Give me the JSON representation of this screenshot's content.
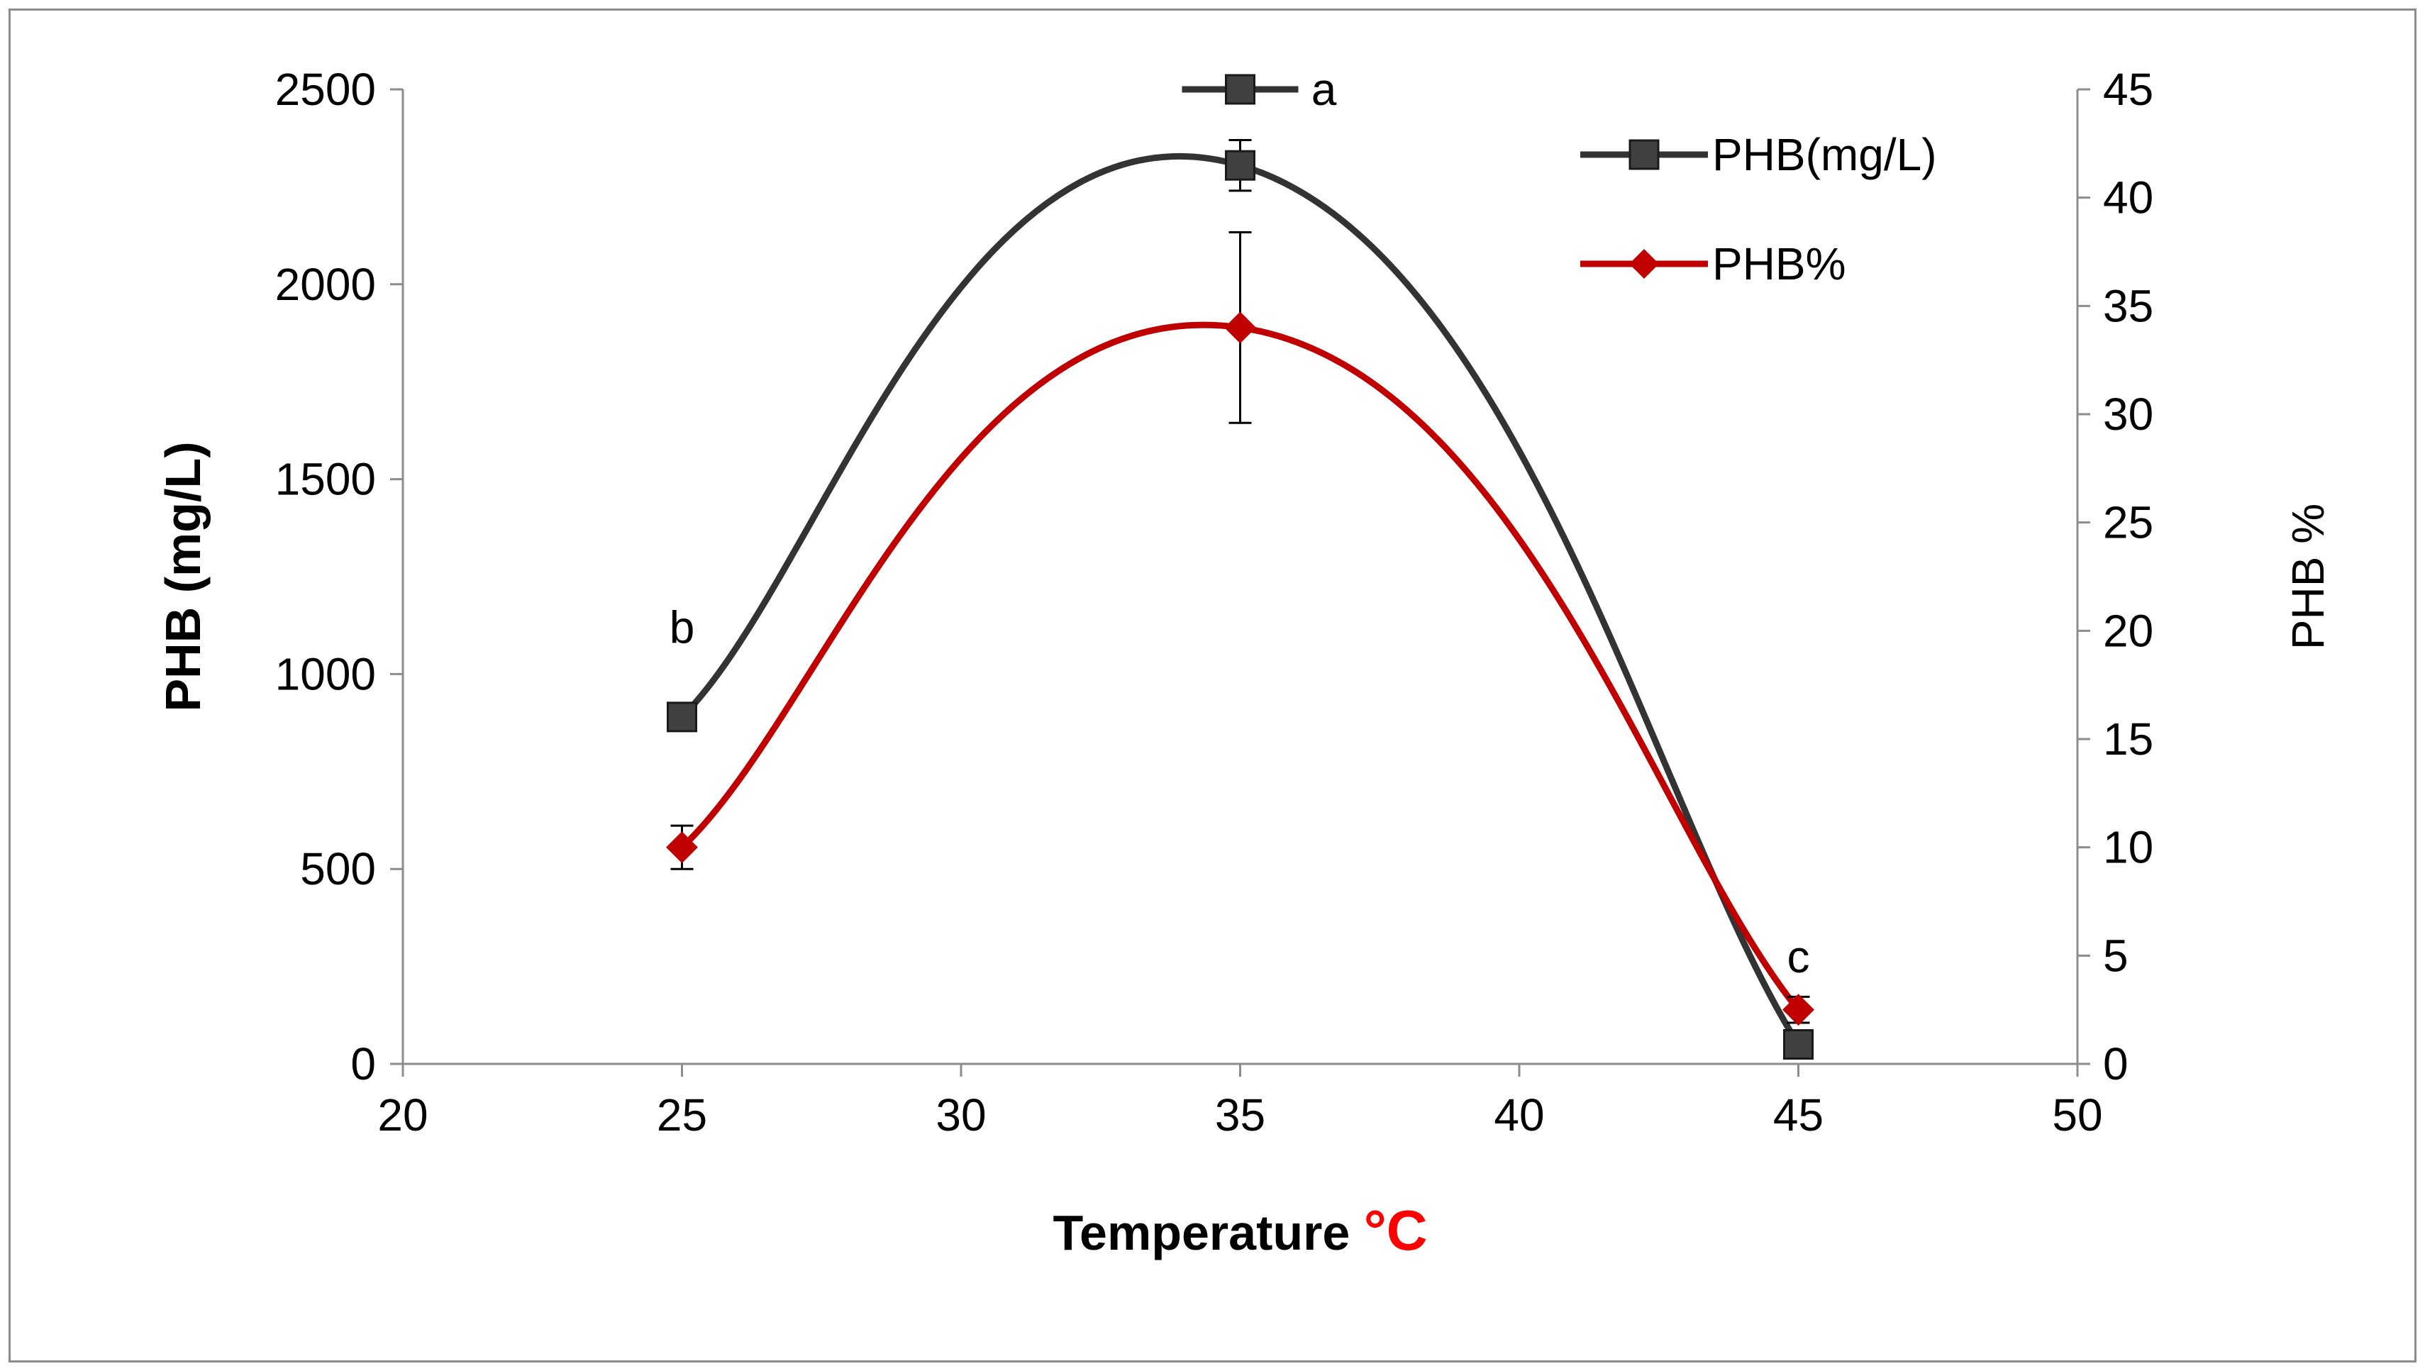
{
  "chart_data": {
    "type": "line",
    "xlabel": "Temperature",
    "xlabel_unit": "°C",
    "ylabel_left": "PHB (mg/L)",
    "ylabel_right": "PHB %",
    "xlim": [
      20,
      50
    ],
    "xticks": [
      20,
      25,
      30,
      35,
      40,
      45,
      50
    ],
    "ylim_left": [
      0,
      2500
    ],
    "yticks_left": [
      0,
      500,
      1000,
      1500,
      2000,
      2500
    ],
    "ylim_right": [
      0,
      45
    ],
    "yticks_right": [
      0,
      5,
      10,
      15,
      20,
      25,
      30,
      35,
      40,
      45
    ],
    "grid": false,
    "legend_position": "top-right",
    "series": [
      {
        "name": "PHB(mg/L)",
        "axis": "left",
        "marker": "square",
        "color": "#333333",
        "x": [
          25,
          35,
          45
        ],
        "y": [
          890,
          2305,
          50
        ],
        "err": [
          0,
          65,
          0
        ]
      },
      {
        "name": "PHB%",
        "axis": "right",
        "marker": "diamond",
        "color": "#c00000",
        "x": [
          25,
          35,
          45
        ],
        "y": [
          10,
          34,
          2.5
        ],
        "err": [
          1,
          4.4,
          0.6
        ]
      }
    ],
    "annotations": [
      {
        "text": "a",
        "x": 35,
        "y": 2500,
        "axis": "left",
        "legend_style": true
      },
      {
        "text": "b",
        "x": 25,
        "y": 1080,
        "axis": "left"
      },
      {
        "text": "c",
        "x": 45,
        "y": 235,
        "axis": "left"
      }
    ]
  }
}
